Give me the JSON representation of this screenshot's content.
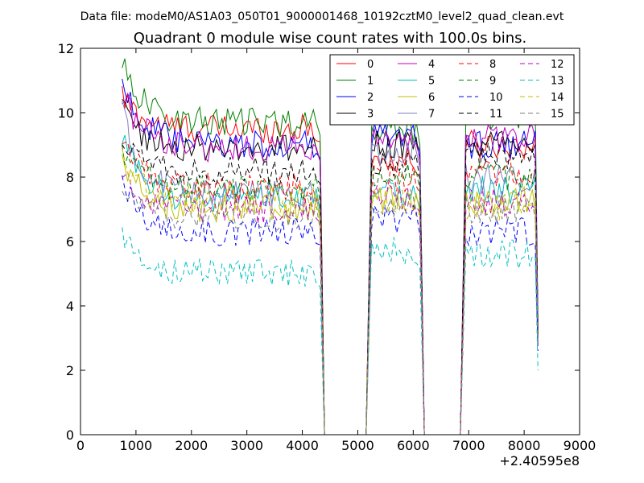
{
  "suptitle": "Data file: modeM0/AS1A03_050T01_9000001468_10192cztM0_level2_quad_clean.evt",
  "chart_data": {
    "type": "line",
    "title": "Quadrant 0 module wise count rates with 100.0s bins.",
    "xlabel": "",
    "ylabel": "",
    "x_offset_label": "+2.40595e8",
    "xlim": [
      0,
      9000
    ],
    "ylim": [
      0,
      12
    ],
    "x_ticks": [
      "0",
      "1000",
      "2000",
      "3000",
      "4000",
      "5000",
      "6000",
      "7000",
      "8000",
      "9000"
    ],
    "y_ticks": [
      "0",
      "2",
      "4",
      "6",
      "8",
      "10",
      "12"
    ],
    "grid": false,
    "legend_position": "top-right",
    "segments": [
      {
        "start": 750,
        "end": 4250
      },
      {
        "start": 5250,
        "end": 6050
      },
      {
        "start": 6950,
        "end": 8250
      }
    ],
    "gaps_zero_x": [
      4400,
      4550,
      5050,
      5150,
      6200,
      6850
    ],
    "series": [
      {
        "name": "0",
        "color": "#ff0000",
        "dash": "solid",
        "levels": [
          9.5,
          8.5,
          9.0
        ],
        "start_boost": 1.0,
        "end_value": 3.2
      },
      {
        "name": "1",
        "color": "#008000",
        "dash": "solid",
        "levels": [
          9.7,
          9.5,
          9.9
        ],
        "start_boost": 2.0,
        "end_value": 3.5
      },
      {
        "name": "2",
        "color": "#0000ff",
        "dash": "solid",
        "levels": [
          9.0,
          9.3,
          9.0
        ],
        "start_boost": 2.1,
        "end_value": 3.3
      },
      {
        "name": "3",
        "color": "#000000",
        "dash": "solid",
        "levels": [
          8.9,
          9.0,
          9.0
        ],
        "start_boost": 1.3,
        "end_value": 3.2
      },
      {
        "name": "4",
        "color": "#bf00bf",
        "dash": "solid",
        "levels": [
          8.9,
          9.1,
          9.2
        ],
        "start_boost": 1.8,
        "end_value": 3.4
      },
      {
        "name": "5",
        "color": "#00bfbf",
        "dash": "solid",
        "levels": [
          7.3,
          7.6,
          7.6
        ],
        "start_boost": 1.9,
        "end_value": 3.0
      },
      {
        "name": "6",
        "color": "#bfbf00",
        "dash": "solid",
        "levels": [
          7.0,
          7.4,
          7.3
        ],
        "start_boost": 1.6,
        "end_value": 2.9
      },
      {
        "name": "7",
        "color": "#7f7fbf",
        "dash": "solid",
        "levels": [
          7.5,
          8.8,
          8.0
        ],
        "start_boost": 2.5,
        "end_value": 3.1
      },
      {
        "name": "8",
        "color": "#ff0000",
        "dash": "dashed",
        "levels": [
          7.7,
          8.0,
          8.1
        ],
        "start_boost": 1.6,
        "end_value": 3.1
      },
      {
        "name": "9",
        "color": "#008000",
        "dash": "dashed",
        "levels": [
          7.6,
          8.1,
          8.0
        ],
        "start_boost": 1.4,
        "end_value": 3.0
      },
      {
        "name": "10",
        "color": "#0000ff",
        "dash": "dashed",
        "levels": [
          6.3,
          6.7,
          6.3
        ],
        "start_boost": 1.5,
        "end_value": 2.6
      },
      {
        "name": "11",
        "color": "#000000",
        "dash": "dashed",
        "levels": [
          8.2,
          8.4,
          8.7
        ],
        "start_boost": 1.2,
        "end_value": 3.1
      },
      {
        "name": "12",
        "color": "#bf00bf",
        "dash": "dashed",
        "levels": [
          7.0,
          7.4,
          7.2
        ],
        "start_boost": 1.1,
        "end_value": 2.8
      },
      {
        "name": "13",
        "color": "#00bfbf",
        "dash": "dashed",
        "levels": [
          5.0,
          5.7,
          5.6
        ],
        "start_boost": 1.3,
        "end_value": 2.0
      },
      {
        "name": "14",
        "color": "#bfbf00",
        "dash": "dashed",
        "levels": [
          7.3,
          7.3,
          7.1
        ],
        "start_boost": 1.2,
        "end_value": 2.9
      },
      {
        "name": "15",
        "color": "#7f7f7f",
        "dash": "dashed",
        "levels": [
          6.8,
          7.2,
          7.0
        ],
        "start_boost": 1.0,
        "end_value": 2.8
      }
    ]
  }
}
